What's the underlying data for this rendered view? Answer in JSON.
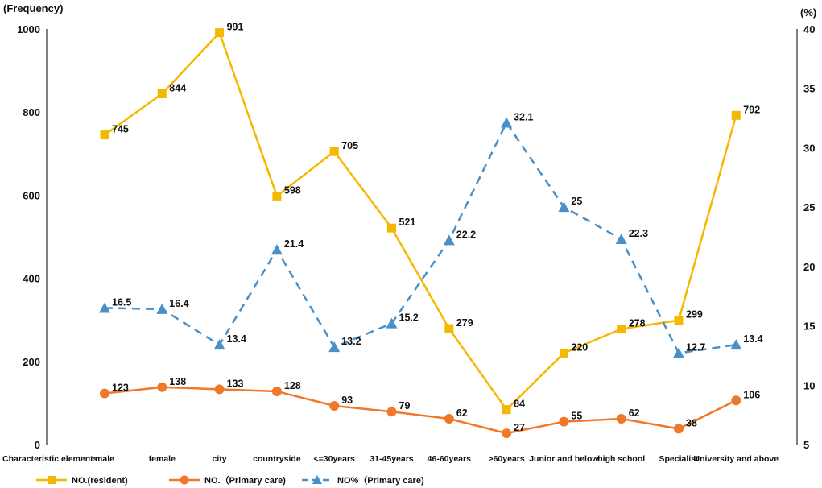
{
  "chart_data": {
    "type": "line",
    "y_left_title": "(Frequency)",
    "y_right_title": "(%)",
    "x_axis_label": "Characteristic elements",
    "categories": [
      "male",
      "female",
      "city",
      "countryside",
      "<=30years",
      "31-45years",
      "46-60years",
      ">60years",
      "Junior and below",
      "high school",
      "Specialist",
      "University and above"
    ],
    "ylim_left": [
      0,
      1000
    ],
    "yticks_left": [
      0,
      200,
      400,
      600,
      800,
      1000
    ],
    "ylim_right": [
      5,
      40
    ],
    "yticks_right": [
      5,
      10,
      15,
      20,
      25,
      30,
      35,
      40
    ],
    "series": [
      {
        "name": "NO.(resident)",
        "axis": "left",
        "color": "#F5B800",
        "marker": "square",
        "dashed": false,
        "values": [
          745,
          844,
          991,
          598,
          705,
          521,
          279,
          84,
          220,
          278,
          299,
          792
        ]
      },
      {
        "name": "NO.（Primary care)",
        "axis": "left",
        "color": "#F07828",
        "marker": "circle",
        "dashed": false,
        "values": [
          123,
          138,
          133,
          128,
          93,
          79,
          62,
          27,
          55,
          62,
          38,
          106
        ]
      },
      {
        "name": "NO%（Primary care)",
        "axis": "right",
        "color": "#4A90C8",
        "marker": "triangle",
        "dashed": true,
        "values": [
          16.5,
          16.4,
          13.4,
          21.4,
          13.2,
          15.2,
          22.2,
          32.1,
          25,
          22.3,
          12.7,
          13.4
        ]
      }
    ]
  }
}
